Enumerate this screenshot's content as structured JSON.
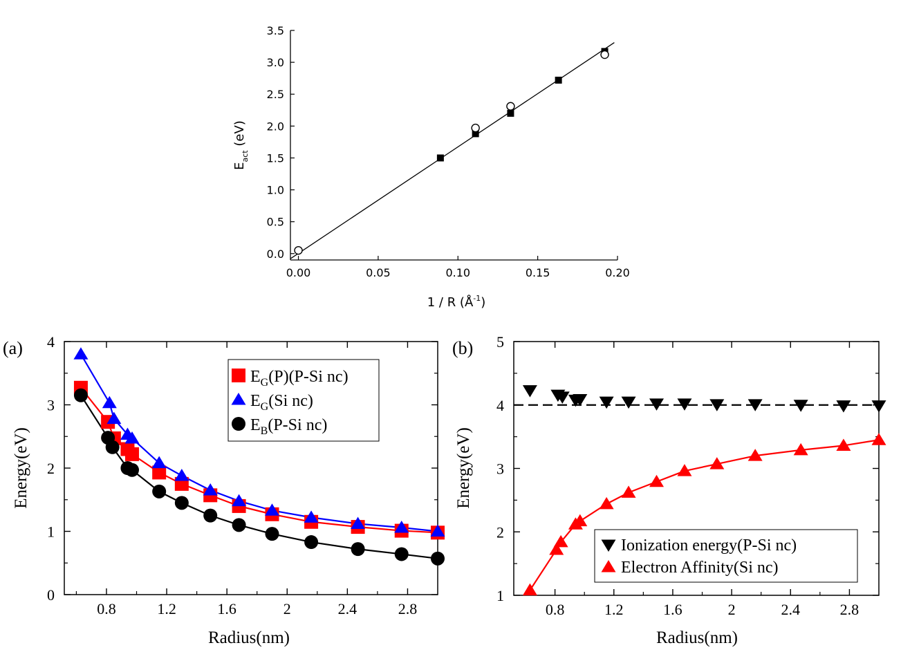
{
  "chart_data": [
    {
      "id": "top",
      "type": "scatter",
      "title": "",
      "xlabel": "1 / R (Å",
      "xlabel_sup": "-1",
      "xlabel_end": ")",
      "ylabel_main": "E",
      "ylabel_sub": "act",
      "ylabel_unit": " (eV)",
      "xlim": [
        -0.005,
        0.2
      ],
      "ylim": [
        -0.1,
        3.5
      ],
      "xticks": [
        0.0,
        0.05,
        0.1,
        0.15,
        0.2
      ],
      "xtick_labels": [
        "0.00",
        "0.05",
        "0.10",
        "0.15",
        "0.20"
      ],
      "yticks": [
        0.0,
        0.5,
        1.0,
        1.5,
        2.0,
        2.5,
        3.0,
        3.5
      ],
      "ytick_labels": [
        "0.0",
        "0.5",
        "1.0",
        "1.5",
        "2.0",
        "2.5",
        "3.0",
        "3.5"
      ],
      "series": [
        {
          "name": "filled squares",
          "marker": "square-filled",
          "x": [
            0.089,
            0.111,
            0.133,
            0.163,
            0.192
          ],
          "y": [
            1.5,
            1.88,
            2.2,
            2.72,
            3.17
          ]
        },
        {
          "name": "open circles",
          "marker": "circle-open",
          "x": [
            0.0,
            0.111,
            0.133,
            0.192
          ],
          "y": [
            0.05,
            1.97,
            2.31,
            3.12
          ]
        }
      ],
      "fit_line": {
        "x": [
          -0.005,
          0.198
        ],
        "y": [
          -0.08,
          3.31
        ]
      }
    },
    {
      "id": "a",
      "panel_label": "(a)",
      "type": "line",
      "xlabel": "Radius(nm)",
      "ylabel": "Energy(eV)",
      "xlim": [
        0.52,
        3.0
      ],
      "ylim": [
        0,
        4
      ],
      "xticks": [
        0.8,
        1.2,
        1.6,
        2.0,
        2.4,
        2.8
      ],
      "xtick_labels": [
        "0.8",
        "1.2",
        "1.6",
        "2",
        "2.4",
        "2.8"
      ],
      "yticks": [
        0,
        1,
        2,
        3,
        4
      ],
      "ytick_labels": [
        "0",
        "1",
        "2",
        "3",
        "4"
      ],
      "series": [
        {
          "name": "E",
          "sub": "G",
          "rest": "(P)(P-Si nc)",
          "color": "#ff0000",
          "marker": "square",
          "x": [
            0.63,
            0.81,
            0.85,
            0.94,
            0.97,
            1.15,
            1.3,
            1.49,
            1.68,
            1.9,
            2.16,
            2.47,
            2.76,
            3.0
          ],
          "y": [
            3.27,
            2.73,
            2.47,
            2.3,
            2.22,
            1.93,
            1.75,
            1.57,
            1.4,
            1.27,
            1.15,
            1.07,
            1.01,
            0.98
          ]
        },
        {
          "name": "E",
          "sub": "G",
          "rest": "(Si nc)",
          "color": "#0000ff",
          "marker": "triangle-up",
          "x": [
            0.63,
            0.82,
            0.85,
            0.94,
            0.97,
            1.15,
            1.3,
            1.49,
            1.68,
            1.9,
            2.16,
            2.47,
            2.76,
            3.0
          ],
          "y": [
            3.8,
            3.03,
            2.78,
            2.53,
            2.47,
            2.08,
            1.88,
            1.65,
            1.48,
            1.33,
            1.22,
            1.12,
            1.06,
            1.0
          ]
        },
        {
          "name": "E",
          "sub": "B",
          "rest": "(P-Si nc)",
          "color": "#000000",
          "marker": "circle",
          "x": [
            0.63,
            0.81,
            0.84,
            0.94,
            0.97,
            1.15,
            1.3,
            1.49,
            1.68,
            1.9,
            2.16,
            2.47,
            2.76,
            3.0
          ],
          "y": [
            3.15,
            2.48,
            2.33,
            2.0,
            1.97,
            1.63,
            1.45,
            1.25,
            1.1,
            0.96,
            0.83,
            0.72,
            0.64,
            0.57
          ]
        }
      ]
    },
    {
      "id": "b",
      "panel_label": "(b)",
      "type": "line",
      "xlabel": "Radius(nm)",
      "ylabel": "Energy(eV)",
      "xlim": [
        0.52,
        3.0
      ],
      "ylim": [
        1,
        5
      ],
      "xticks": [
        0.8,
        1.2,
        1.6,
        2.0,
        2.4,
        2.8
      ],
      "xtick_labels": [
        "0.8",
        "1.2",
        "1.6",
        "2",
        "2.4",
        "2.8"
      ],
      "yticks": [
        1,
        2,
        3,
        4,
        5
      ],
      "ytick_labels": [
        "1",
        "2",
        "3",
        "4",
        "5"
      ],
      "reference_line": {
        "y": 4.0,
        "style": "dashed"
      },
      "series": [
        {
          "name": "Ionization energy(P-Si nc)",
          "color": "#000000",
          "marker": "triangle-down",
          "x": [
            0.63,
            0.82,
            0.85,
            0.94,
            0.97,
            1.15,
            1.3,
            1.49,
            1.68,
            1.9,
            2.16,
            2.47,
            2.76,
            3.0
          ],
          "y": [
            4.23,
            4.16,
            4.13,
            4.08,
            4.09,
            4.05,
            4.05,
            4.02,
            4.02,
            4.01,
            4.01,
            4.0,
            3.99,
            3.99
          ]
        },
        {
          "name": "Electron Affinity(Si nc)",
          "color": "#ff0000",
          "marker": "triangle-up",
          "x": [
            0.63,
            0.81,
            0.84,
            0.94,
            0.97,
            1.15,
            1.3,
            1.49,
            1.68,
            1.9,
            2.16,
            2.47,
            2.76,
            3.0
          ],
          "y": [
            1.08,
            1.72,
            1.84,
            2.12,
            2.17,
            2.44,
            2.62,
            2.79,
            2.96,
            3.07,
            3.2,
            3.29,
            3.36,
            3.45
          ]
        }
      ]
    }
  ]
}
